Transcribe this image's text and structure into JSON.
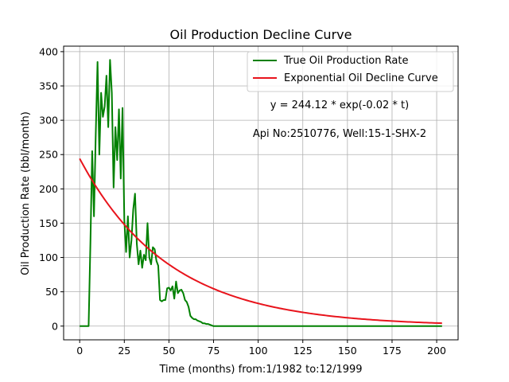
{
  "chart_data": {
    "type": "line",
    "title": "Oil Production Decline Curve",
    "xlabel": "Time (months) from:1/1982 to:12/1999",
    "ylabel": "Oil Production Rate (bbl/month)",
    "xlim": [
      -9,
      212
    ],
    "ylim": [
      -20,
      408
    ],
    "xticks": [
      0,
      25,
      50,
      75,
      100,
      125,
      150,
      175,
      200
    ],
    "yticks": [
      0,
      50,
      100,
      150,
      200,
      250,
      300,
      350,
      400
    ],
    "grid": true,
    "legend": {
      "placement": "top-right"
    },
    "annotations": [
      {
        "text": "y = 244.12 * exp(-0.02 * t)"
      },
      {
        "text": "Api No:2510776, Well:15-1-SHX-2"
      }
    ],
    "series": [
      {
        "name": "True Oil Production Rate",
        "color": "#008000",
        "x": [
          0,
          1,
          2,
          3,
          4,
          5,
          6,
          7,
          8,
          9,
          10,
          11,
          12,
          13,
          14,
          15,
          16,
          17,
          18,
          19,
          20,
          21,
          22,
          23,
          24,
          25,
          26,
          27,
          28,
          29,
          30,
          31,
          32,
          33,
          34,
          35,
          36,
          37,
          38,
          39,
          40,
          41,
          42,
          43,
          44,
          45,
          46,
          47,
          48,
          49,
          50,
          51,
          52,
          53,
          54,
          55,
          56,
          57,
          58,
          59,
          60,
          61,
          62,
          63,
          64,
          65,
          66,
          67,
          68,
          69,
          70,
          71,
          72,
          73,
          74,
          75,
          80,
          100,
          125,
          150,
          175,
          203
        ],
        "y": [
          0,
          0,
          0,
          0,
          0,
          0,
          120,
          255,
          160,
          280,
          385,
          250,
          340,
          305,
          320,
          365,
          290,
          388,
          340,
          202,
          290,
          242,
          316,
          215,
          318,
          155,
          108,
          160,
          100,
          125,
          170,
          193,
          120,
          90,
          110,
          85,
          104,
          96,
          150,
          100,
          90,
          115,
          112,
          95,
          88,
          38,
          36,
          38,
          38,
          55,
          56,
          52,
          58,
          40,
          65,
          48,
          52,
          53,
          48,
          38,
          35,
          28,
          15,
          12,
          10,
          10,
          8,
          7,
          6,
          4,
          4,
          3,
          3,
          2,
          1,
          0,
          0,
          0,
          0,
          0,
          0,
          0
        ]
      },
      {
        "name": "Exponential Oil Decline Curve",
        "color": "#e8141c",
        "model": {
          "a": 244.12,
          "b": -0.02
        },
        "x_range": [
          0,
          203
        ]
      }
    ]
  }
}
